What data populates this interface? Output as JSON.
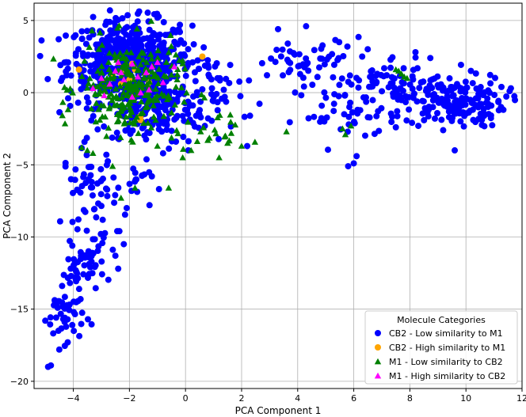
{
  "chart_data": {
    "type": "scatter",
    "xlabel": "PCA Component 1",
    "ylabel": "PCA Component 2",
    "xlim": [
      -5.4,
      12.0
    ],
    "ylim": [
      -20.5,
      6.2
    ],
    "xticks": [
      -4,
      -2,
      0,
      2,
      4,
      6,
      8,
      10,
      12
    ],
    "yticks": [
      5,
      0,
      -5,
      -10,
      -15,
      -20
    ],
    "grid": true,
    "legend": {
      "title": "Molecule Categories",
      "placement": "lower-right"
    },
    "series": [
      {
        "name": "CB2 - Low similarity to M1",
        "marker": "circle",
        "color": "#0000ff",
        "clusters": [
          {
            "cx": -2.0,
            "cy": 2.2,
            "sx": 1.1,
            "sy": 1.4,
            "n": 520
          },
          {
            "cx": -1.2,
            "cy": -1.2,
            "sx": 1.0,
            "sy": 1.2,
            "n": 180
          },
          {
            "cx": 9.6,
            "cy": -0.6,
            "sx": 0.9,
            "sy": 0.9,
            "n": 180
          },
          {
            "cx": 4.5,
            "cy": 2.0,
            "sx": 1.0,
            "sy": 0.9,
            "n": 55
          },
          {
            "cx": 7.2,
            "cy": 0.6,
            "sx": 1.0,
            "sy": 1.1,
            "n": 70
          },
          {
            "cx": 5.5,
            "cy": -1.6,
            "sx": 0.8,
            "sy": 0.9,
            "n": 35
          },
          {
            "cx": 1.2,
            "cy": 0.3,
            "sx": 0.8,
            "sy": 1.3,
            "n": 45
          },
          {
            "cx": -3.4,
            "cy": -6.5,
            "sx": 0.5,
            "sy": 1.4,
            "n": 55
          },
          {
            "cx": -1.6,
            "cy": -6.5,
            "sx": 0.5,
            "sy": 0.9,
            "n": 15
          },
          {
            "cx": -3.8,
            "cy": -12.3,
            "sx": 0.3,
            "sy": 0.9,
            "n": 45
          },
          {
            "cx": -4.3,
            "cy": -15.4,
            "sx": 0.35,
            "sy": 0.9,
            "n": 40
          },
          {
            "cx": -2.9,
            "cy": -10.0,
            "sx": 0.4,
            "sy": 1.2,
            "n": 14
          }
        ],
        "points": [
          {
            "x": -4.9,
            "y": -19.0
          },
          {
            "x": -4.8,
            "y": -18.9
          },
          {
            "x": -5.0,
            "y": -15.8
          },
          {
            "x": -4.5,
            "y": -17.8
          },
          {
            "x": -4.2,
            "y": -17.3
          },
          {
            "x": -2.5,
            "y": -11.3
          },
          {
            "x": -2.2,
            "y": -10.5
          },
          {
            "x": -2.4,
            "y": -12.2
          },
          {
            "x": 3.3,
            "y": 4.4
          },
          {
            "x": 4.3,
            "y": 4.6
          },
          {
            "x": 6.3,
            "y": 2.5
          },
          {
            "x": 6.1,
            "y": -4.4
          },
          {
            "x": 6.0,
            "y": -4.9
          },
          {
            "x": 5.8,
            "y": -5.1
          },
          {
            "x": 7.5,
            "y": -2.4
          },
          {
            "x": 8.2,
            "y": 2.8
          },
          {
            "x": 9.6,
            "y": -4.0
          },
          {
            "x": 2.2,
            "y": -3.7
          },
          {
            "x": 2.3,
            "y": -1.6
          },
          {
            "x": -1.0,
            "y": 5.2
          },
          {
            "x": -0.2,
            "y": 4.7
          },
          {
            "x": -1.2,
            "y": -5.8
          },
          {
            "x": -0.8,
            "y": -4.2
          },
          {
            "x": 0.1,
            "y": -4.0
          }
        ]
      },
      {
        "name": "CB2 - High similarity to M1",
        "marker": "circle",
        "color": "#ffa500",
        "points": [
          {
            "x": -3.8,
            "y": 1.6
          },
          {
            "x": 0.6,
            "y": 2.5
          },
          {
            "x": -1.6,
            "y": -1.9
          },
          {
            "x": -1.6,
            "y": -1.6
          },
          {
            "x": -2.3,
            "y": 1.4
          },
          {
            "x": -2.6,
            "y": 1.2
          },
          {
            "x": -2.0,
            "y": 0.9
          },
          {
            "x": -2.3,
            "y": 0.6
          },
          {
            "x": -1.9,
            "y": 2.0
          },
          {
            "x": -1.3,
            "y": 0.7
          },
          {
            "x": -1.8,
            "y": 1.6
          }
        ]
      },
      {
        "name": "M1 - Low similarity to CB2",
        "marker": "triangle",
        "color": "#008000",
        "clusters": [
          {
            "cx": -2.0,
            "cy": 0.3,
            "sx": 0.9,
            "sy": 1.6,
            "n": 260
          },
          {
            "cx": 0.8,
            "cy": -2.8,
            "sx": 0.6,
            "sy": 0.6,
            "n": 20
          }
        ],
        "points": [
          {
            "x": 7.6,
            "y": 1.5
          },
          {
            "x": 7.7,
            "y": 1.3
          },
          {
            "x": 7.8,
            "y": 1.1
          },
          {
            "x": 7.5,
            "y": 1.6
          },
          {
            "x": 7.9,
            "y": 1.0
          },
          {
            "x": 3.6,
            "y": -2.7
          },
          {
            "x": 5.6,
            "y": -2.5
          },
          {
            "x": 5.7,
            "y": -2.9
          },
          {
            "x": 5.9,
            "y": -2.3
          },
          {
            "x": -3.7,
            "y": -3.8
          },
          {
            "x": -3.5,
            "y": -4.0
          },
          {
            "x": -3.3,
            "y": -4.2
          },
          {
            "x": -2.6,
            "y": -5.1
          },
          {
            "x": -1.8,
            "y": -6.6
          },
          {
            "x": -2.3,
            "y": -7.3
          },
          {
            "x": -0.6,
            "y": -6.6
          },
          {
            "x": 2.0,
            "y": -3.7
          },
          {
            "x": 1.2,
            "y": -4.5
          },
          {
            "x": 1.5,
            "y": -3.5
          },
          {
            "x": 0.2,
            "y": -4.0
          },
          {
            "x": -0.1,
            "y": -4.5
          }
        ]
      },
      {
        "name": "M1 - High similarity to CB2",
        "marker": "triangle",
        "color": "#ff00ff",
        "points": [
          {
            "x": -3.0,
            "y": 1.0
          },
          {
            "x": -2.5,
            "y": 1.5
          },
          {
            "x": -1.2,
            "y": 1.8
          },
          {
            "x": -1.0,
            "y": 2.1
          },
          {
            "x": -0.4,
            "y": 1.8
          },
          {
            "x": -2.7,
            "y": 0.6
          },
          {
            "x": -1.7,
            "y": 1.1
          },
          {
            "x": -1.3,
            "y": 0.2
          },
          {
            "x": -2.2,
            "y": 0.9
          },
          {
            "x": -1.4,
            "y": 1.4
          },
          {
            "x": -1.9,
            "y": -0.3
          },
          {
            "x": -2.9,
            "y": -0.2
          },
          {
            "x": -0.8,
            "y": 0.7
          },
          {
            "x": -2.4,
            "y": 2.1
          },
          {
            "x": -1.6,
            "y": 0.0
          },
          {
            "x": -3.3,
            "y": 0.3
          },
          {
            "x": -2.3,
            "y": 1.4
          },
          {
            "x": -1.9,
            "y": 2.0
          }
        ]
      }
    ]
  }
}
